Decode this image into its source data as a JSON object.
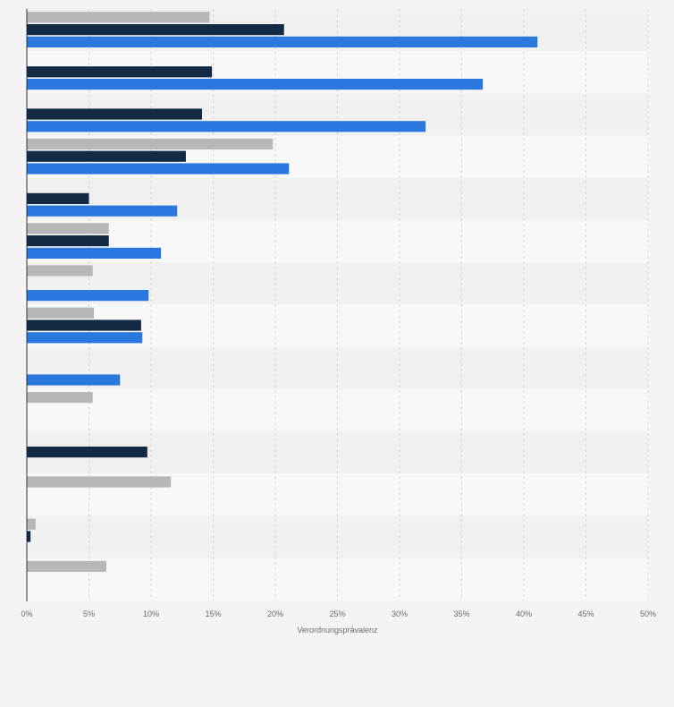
{
  "chart_data": {
    "type": "bar",
    "orientation": "horizontal",
    "xlabel": "Verordnungsprävalenz",
    "x_ticks": [
      "0%",
      "5%",
      "10%",
      "15%",
      "20%",
      "25%",
      "30%",
      "35%",
      "40%",
      "45%",
      "50%"
    ],
    "xlim": [
      0,
      50
    ],
    "grid": true,
    "legend": "none",
    "categories": [
      "",
      "",
      "",
      "",
      "",
      "",
      "",
      "",
      "",
      "",
      "",
      "",
      "",
      ""
    ],
    "series": [
      {
        "color": "#b7b7b7",
        "values": [
          14.7,
          null,
          null,
          19.8,
          null,
          6.6,
          5.3,
          5.4,
          null,
          5.3,
          null,
          11.6,
          0.7,
          6.4
        ]
      },
      {
        "color": "#132a44",
        "values": [
          20.7,
          14.9,
          14.1,
          12.8,
          5.0,
          6.6,
          null,
          9.2,
          null,
          null,
          9.7,
          null,
          0.3,
          null
        ]
      },
      {
        "color": "#2a77de",
        "values": [
          41.1,
          36.7,
          32.1,
          21.1,
          12.1,
          10.8,
          9.8,
          9.3,
          7.5,
          null,
          null,
          null,
          null,
          null
        ]
      }
    ]
  }
}
